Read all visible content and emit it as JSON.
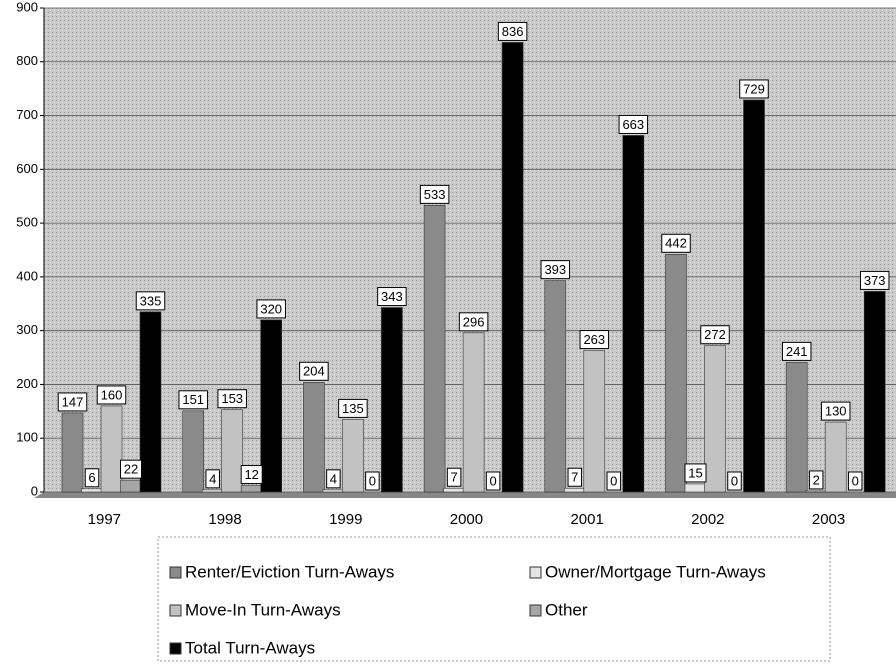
{
  "chart_data": {
    "type": "bar",
    "categories": [
      "1997",
      "1998",
      "1999",
      "2000",
      "2001",
      "2002",
      "2003"
    ],
    "series": [
      {
        "name": "Renter/Eviction Turn-Aways",
        "color": "#8a8a8a",
        "values": [
          147,
          151,
          204,
          533,
          393,
          442,
          241
        ]
      },
      {
        "name": "Owner/Mortgage Turn-Aways",
        "color": "#e4e4e4",
        "values": [
          6,
          4,
          4,
          7,
          7,
          15,
          2
        ]
      },
      {
        "name": "Move-In Turn-Aways",
        "color": "#c2c2c2",
        "values": [
          160,
          153,
          135,
          296,
          263,
          272,
          130
        ]
      },
      {
        "name": "Other",
        "color": "#a6a6a6",
        "values": [
          22,
          12,
          0,
          0,
          0,
          0,
          0
        ]
      },
      {
        "name": "Total Turn-Aways",
        "color": "#000000",
        "values": [
          335,
          320,
          343,
          836,
          663,
          729,
          373
        ]
      }
    ],
    "ylim": [
      0,
      900
    ],
    "yticks": [
      0,
      100,
      200,
      300,
      400,
      500,
      600,
      700,
      800,
      900
    ],
    "grid": true
  }
}
